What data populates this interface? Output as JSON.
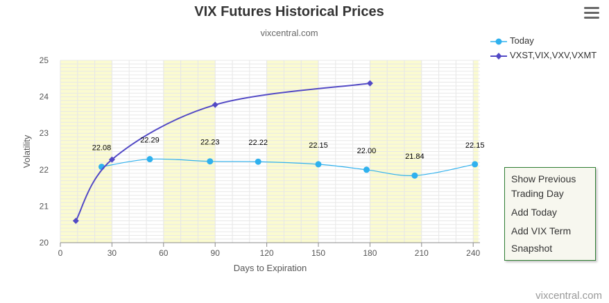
{
  "chart_data": {
    "type": "line",
    "title": "VIX Futures Historical Prices",
    "subtitle": "vixcentral.com",
    "xlabel": "Days to Expiration",
    "ylabel": "Volatility",
    "xlim": [
      0,
      240
    ],
    "ylim": [
      20,
      25
    ],
    "x_ticks": [
      0,
      30,
      60,
      90,
      120,
      150,
      180,
      210,
      240
    ],
    "y_ticks": [
      20,
      21,
      22,
      23,
      24,
      25
    ],
    "grid": true,
    "band_color": "#fbfbd0",
    "bands": [
      [
        0,
        30
      ],
      [
        60,
        90
      ],
      [
        120,
        150
      ],
      [
        180,
        210
      ],
      [
        240,
        243
      ]
    ],
    "legend_position": "top-right",
    "series": [
      {
        "name": "Today",
        "color": "#2fb1ee",
        "marker": "circle",
        "x": [
          24,
          52,
          87,
          115,
          150,
          178,
          206,
          241
        ],
        "y": [
          22.08,
          22.29,
          22.23,
          22.22,
          22.15,
          22.0,
          21.84,
          22.15
        ],
        "labels": [
          "22.08",
          "22.29",
          "22.23",
          "22.22",
          "22.15",
          "22.00",
          "21.84",
          "22.15"
        ]
      },
      {
        "name": "VXST,VIX,VXV,VXMT",
        "color": "#5249c5",
        "marker": "diamond",
        "x": [
          9,
          30,
          90,
          180
        ],
        "y": [
          20.6,
          22.28,
          23.78,
          24.37
        ]
      }
    ]
  },
  "menu": {
    "items": [
      "Show Previous",
      "Trading Day",
      "Add Today",
      "Add VIX Term",
      "Snapshot"
    ]
  },
  "credit": "vixcentral.com"
}
